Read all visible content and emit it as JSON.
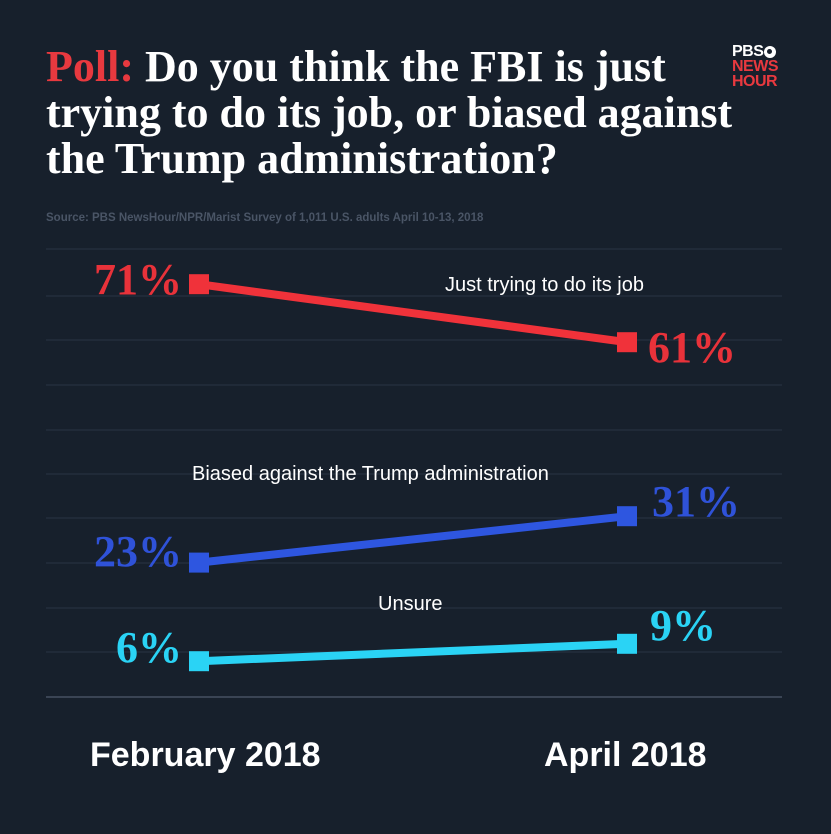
{
  "title": {
    "prefix": "Poll:",
    "text": " Do you think the FBI is just trying to do its job, or biased against the Trump administration?"
  },
  "logo": {
    "line1": "PBS",
    "line2": "NEWS",
    "line3": "HOUR",
    "icon": "pbs-head-icon"
  },
  "source": "Source: PBS NewsHour/NPR/Marist  Survey of 1,011 U.S. adults April 10-13, 2018",
  "colors": {
    "background": "#17202c",
    "red": "#f0323a",
    "blue": "#2e56e0",
    "cyan": "#2ad3f5",
    "grid": "#2a3443"
  },
  "chart_data": {
    "type": "line",
    "title": "Poll: Do you think the FBI is just trying to do its job, or biased against the Trump administration?",
    "categories": [
      "February 2018",
      "April 2018"
    ],
    "ylim": [
      0,
      80
    ],
    "grid": true,
    "series": [
      {
        "name": "Just trying to do its job",
        "values": [
          71,
          61
        ],
        "labels": [
          "71%",
          "61%"
        ],
        "color": "#f0323a",
        "labelColor": "#e8323a"
      },
      {
        "name": "Biased against the Trump administration",
        "values": [
          23,
          31
        ],
        "labels": [
          "23%",
          "31%"
        ],
        "color": "#2e56e0",
        "labelColor": "#2f52d8"
      },
      {
        "name": "Unsure",
        "values": [
          6,
          9
        ],
        "labels": [
          "6%",
          "9%"
        ],
        "color": "#2ad3f5",
        "labelColor": "#2ad3f5"
      }
    ]
  }
}
